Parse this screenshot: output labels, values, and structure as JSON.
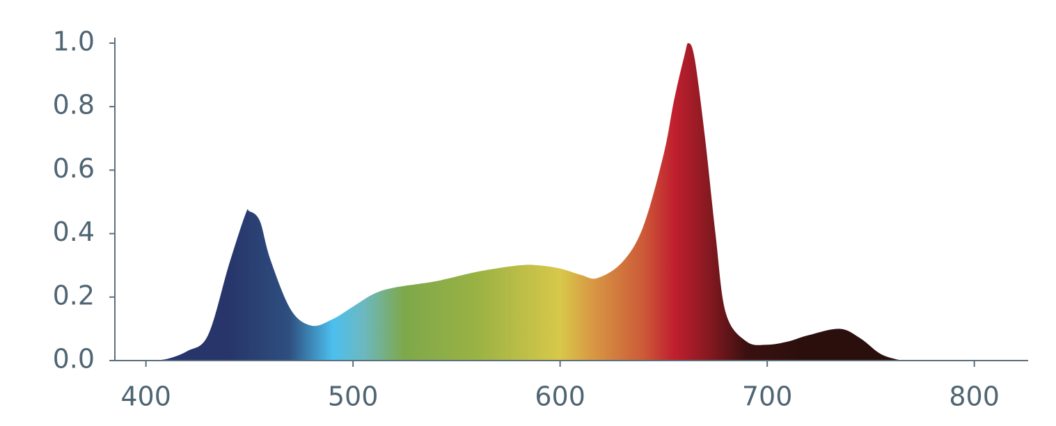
{
  "chart_data": {
    "type": "area",
    "x": [
      400,
      410,
      420,
      430,
      440,
      448,
      450,
      455,
      460,
      470,
      480,
      490,
      500,
      510,
      520,
      540,
      560,
      580,
      590,
      600,
      610,
      618,
      630,
      640,
      650,
      655,
      660,
      662,
      665,
      670,
      675,
      680,
      690,
      700,
      710,
      720,
      735,
      745,
      755,
      765
    ],
    "y": [
      0,
      0.005,
      0.03,
      0.08,
      0.3,
      0.46,
      0.47,
      0.44,
      0.32,
      0.16,
      0.11,
      0.13,
      0.17,
      0.21,
      0.23,
      0.25,
      0.28,
      0.3,
      0.3,
      0.29,
      0.27,
      0.26,
      0.31,
      0.42,
      0.65,
      0.82,
      0.96,
      1.0,
      0.95,
      0.7,
      0.4,
      0.15,
      0.06,
      0.05,
      0.06,
      0.08,
      0.1,
      0.07,
      0.02,
      0
    ],
    "xlim": [
      385,
      826
    ],
    "ylim": [
      0,
      1.0
    ],
    "xticks": [
      400,
      500,
      600,
      700,
      800
    ],
    "yticks": [
      {
        "value": 0,
        "label": "0.0"
      },
      0.2,
      0.4,
      0.6,
      0.8,
      {
        "value": 1.0,
        "label": "1.0"
      }
    ],
    "grid": false
  }
}
